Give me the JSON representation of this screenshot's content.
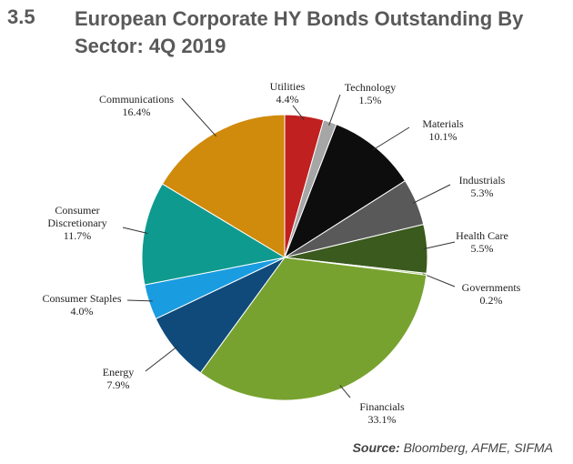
{
  "chart_data": {
    "type": "pie",
    "number": "3.5",
    "title": "European Corporate HY Bonds Outstanding By Sector: 4Q 2019",
    "categories": [
      "Utilities",
      "Technology",
      "Materials",
      "Industrials",
      "Health Care",
      "Governments",
      "Financials",
      "Energy",
      "Consumer Staples",
      "Consumer Discretionary",
      "Communications"
    ],
    "values": [
      4.4,
      1.5,
      10.1,
      5.3,
      5.5,
      0.2,
      33.1,
      7.9,
      4.0,
      11.7,
      16.4
    ],
    "value_labels": [
      "4.4%",
      "1.5%",
      "10.1%",
      "5.3%",
      "5.5%",
      "0.2%",
      "33.1%",
      "7.9%",
      "4.0%",
      "11.7%",
      "16.4%"
    ],
    "colors": [
      "#c0201f",
      "#a6a6a6",
      "#0d0d0d",
      "#595959",
      "#3a5a1e",
      "#a9c97a",
      "#77a22f",
      "#0f4a7a",
      "#1a9ce0",
      "#0f9a8f",
      "#d08a0c"
    ],
    "source_label": "Source:",
    "source": "Bloomberg, AFME, SIFMA"
  }
}
